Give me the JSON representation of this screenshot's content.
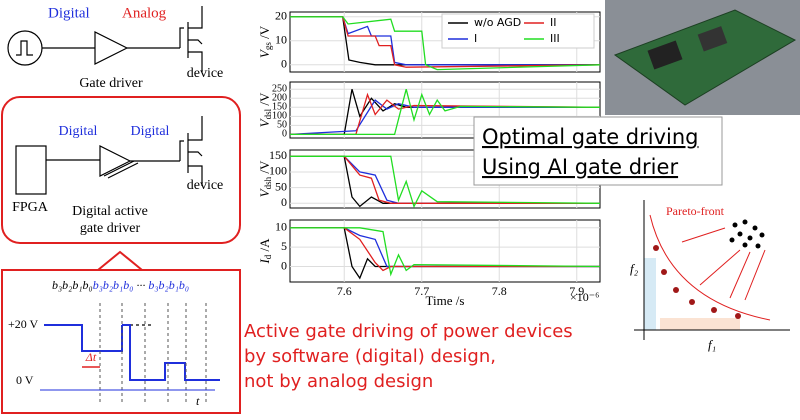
{
  "top_circuit": {
    "digital": "Digital",
    "analog": "Analog",
    "gate_driver": "Gate driver",
    "device": "device"
  },
  "middle_circuit": {
    "digital_1": "Digital",
    "digital_2": "Digital",
    "fpga": "FPGA",
    "driver_line_1": "Digital active",
    "driver_line_2": "gate driver",
    "device": "device"
  },
  "timing": {
    "bits": [
      "b₃b₂b₁b₀",
      "b₃b₂b₁b₀",
      "···",
      "b₃b₂b₁b₀"
    ],
    "high_level": "+20 V",
    "low_level": "0 V",
    "step": "Δt",
    "time": "t"
  },
  "plots": {
    "x_label": "Time /s",
    "x_exponent": "×10⁻⁶",
    "xlim": [
      7.53,
      7.93
    ],
    "xticks": [
      7.6,
      7.7,
      7.8,
      7.9
    ],
    "series_styles": [
      {
        "name": "w/o AGD",
        "color": "#000000"
      },
      {
        "name": "I",
        "color": "#1f2fdc"
      },
      {
        "name": "II",
        "color": "#e02020"
      },
      {
        "name": "III",
        "color": "#22dd22"
      }
    ],
    "panels": [
      {
        "ylabel": {
          "symbol": "V",
          "subscript": "gs",
          "unit": " /V"
        },
        "ylim": [
          -3,
          22
        ],
        "yticks": [
          0,
          10,
          20
        ],
        "series": [
          {
            "x": [
              7.53,
              7.598,
              7.606,
              7.62,
              7.64,
              7.93
            ],
            "values": [
              20,
              20,
              2,
              1,
              0,
              0
            ]
          },
          {
            "x": [
              7.53,
              7.598,
              7.605,
              7.63,
              7.635,
              7.66,
              7.665,
              7.68,
              7.93
            ],
            "values": [
              20,
              20,
              13,
              16,
              12,
              12,
              1,
              0,
              0
            ]
          },
          {
            "x": [
              7.53,
              7.598,
              7.605,
              7.64,
              7.645,
              7.66,
              7.665,
              7.68,
              7.93
            ],
            "values": [
              20,
              20,
              12,
              12,
              8,
              8,
              0,
              -1,
              0
            ]
          },
          {
            "x": [
              7.53,
              7.598,
              7.605,
              7.66,
              7.665,
              7.7,
              7.705,
              7.72,
              7.93
            ],
            "values": [
              20,
              20,
              17,
              19,
              14,
              14,
              0,
              -2,
              0
            ]
          }
        ]
      },
      {
        "ylabel": {
          "symbol": "V",
          "subscript": "dsl",
          "unit": " /V"
        },
        "ylim": [
          -20,
          290
        ],
        "yticks": [
          0,
          50,
          100,
          150,
          200,
          250
        ],
        "series": [
          {
            "x": [
              7.53,
              7.6,
              7.61,
              7.62,
              7.635,
              7.65,
              7.665,
              7.68,
              7.93
            ],
            "values": [
              0,
              0,
              250,
              100,
              200,
              130,
              170,
              150,
              150
            ]
          },
          {
            "x": [
              7.53,
              7.615,
              7.64,
              7.655,
              7.67,
              7.69,
              7.93
            ],
            "values": [
              0,
              20,
              190,
              140,
              170,
              150,
              150
            ]
          },
          {
            "x": [
              7.53,
              7.615,
              7.63,
              7.64,
              7.655,
              7.67,
              7.69,
              7.93
            ],
            "values": [
              0,
              0,
              220,
              110,
              190,
              140,
              160,
              150
            ]
          },
          {
            "x": [
              7.53,
              7.665,
              7.68,
              7.69,
              7.7,
              7.71,
              7.72,
              7.73,
              7.75,
              7.93
            ],
            "values": [
              0,
              0,
              250,
              80,
              220,
              110,
              190,
              130,
              155,
              150
            ]
          }
        ]
      },
      {
        "ylabel": {
          "symbol": "V",
          "subscript": "dsh",
          "unit": " /V"
        },
        "ylim": [
          -15,
          170
        ],
        "yticks": [
          0,
          50,
          100,
          150
        ],
        "series": [
          {
            "x": [
              7.53,
              7.6,
              7.61,
              7.62,
              7.635,
              7.65,
              7.93
            ],
            "values": [
              150,
              150,
              20,
              -10,
              20,
              0,
              0
            ]
          },
          {
            "x": [
              7.53,
              7.6,
              7.62,
              7.64,
              7.655,
              7.67,
              7.93
            ],
            "values": [
              150,
              150,
              100,
              90,
              10,
              0,
              0
            ]
          },
          {
            "x": [
              7.53,
              7.6,
              7.62,
              7.635,
              7.645,
              7.66,
              7.93
            ],
            "values": [
              150,
              150,
              90,
              80,
              10,
              0,
              0
            ]
          },
          {
            "x": [
              7.53,
              7.66,
              7.67,
              7.68,
              7.69,
              7.7,
              7.72,
              7.93
            ],
            "values": [
              150,
              150,
              10,
              70,
              -10,
              40,
              5,
              0
            ]
          }
        ]
      },
      {
        "ylabel": {
          "symbol": "I",
          "subscript": "d",
          "unit": " /A"
        },
        "ylim": [
          -4,
          12
        ],
        "yticks": [
          0,
          5,
          10
        ],
        "series": [
          {
            "x": [
              7.53,
              7.6,
              7.61,
              7.62,
              7.63,
              7.64,
              7.93
            ],
            "values": [
              10,
              10,
              0,
              -3,
              2,
              0,
              0
            ]
          },
          {
            "x": [
              7.53,
              7.6,
              7.62,
              7.64,
              7.655,
              7.67,
              7.93
            ],
            "values": [
              10,
              10,
              8,
              7,
              0,
              0,
              0
            ]
          },
          {
            "x": [
              7.53,
              7.6,
              7.62,
              7.64,
              7.65,
              7.66,
              7.93
            ],
            "values": [
              10,
              10,
              7,
              1,
              -1,
              0,
              0
            ]
          },
          {
            "x": [
              7.53,
              7.62,
              7.65,
              7.66,
              7.67,
              7.68,
              7.69,
              7.93
            ],
            "values": [
              10,
              10,
              9,
              -2,
              3,
              -1,
              0.5,
              0
            ]
          }
        ]
      }
    ]
  },
  "callout": {
    "line_1": "Optimal gate driving",
    "line_2": "Using AI gate drier"
  },
  "caption": [
    "Active gate driving of power devices",
    "by software (digital) design,",
    "not by analog design"
  ],
  "pareto": {
    "label": "Pareto-front",
    "x_label": "f₁",
    "y_label": "f₂"
  }
}
